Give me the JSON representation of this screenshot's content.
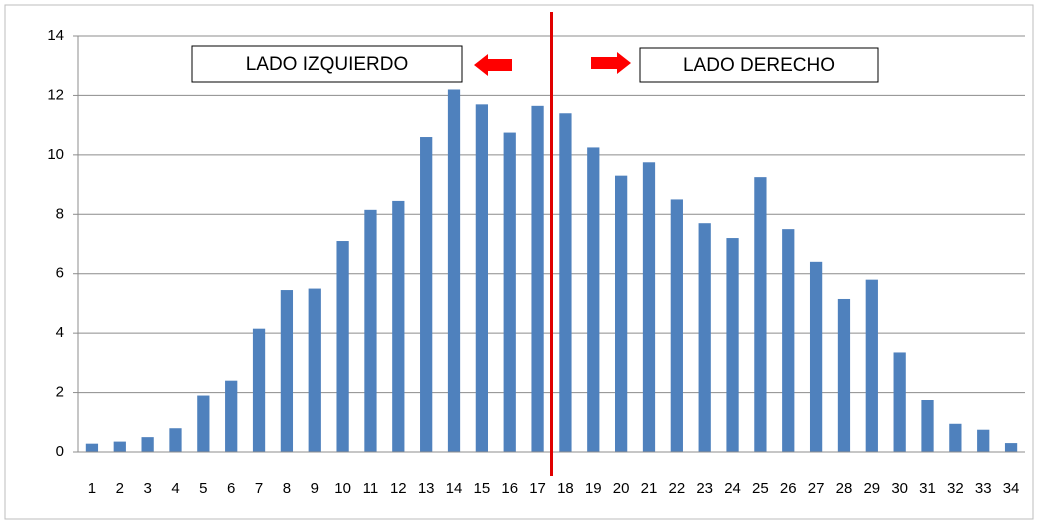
{
  "chart_data": {
    "type": "bar",
    "annotations": [
      "LADO IZQUIERDO",
      "LADO DERECHO"
    ],
    "categories": [
      "1",
      "2",
      "3",
      "4",
      "5",
      "6",
      "7",
      "8",
      "9",
      "10",
      "11",
      "12",
      "13",
      "14",
      "15",
      "16",
      "17",
      "18",
      "19",
      "20",
      "21",
      "22",
      "23",
      "24",
      "25",
      "26",
      "27",
      "28",
      "29",
      "30",
      "31",
      "32",
      "33",
      "34"
    ],
    "values": [
      0.28,
      0.35,
      0.5,
      0.8,
      1.9,
      2.4,
      4.15,
      5.45,
      5.5,
      7.1,
      8.15,
      8.45,
      10.6,
      12.2,
      11.7,
      10.75,
      11.65,
      11.4,
      10.25,
      9.3,
      9.75,
      8.5,
      7.7,
      7.2,
      9.25,
      7.5,
      6.4,
      5.15,
      5.8,
      3.35,
      1.75,
      0.95,
      0.75,
      0.3
    ],
    "color": "#4f81bd",
    "ylim": [
      0,
      14
    ],
    "yticks": [
      0,
      2,
      4,
      6,
      8,
      10,
      12,
      14
    ],
    "grid": true
  }
}
